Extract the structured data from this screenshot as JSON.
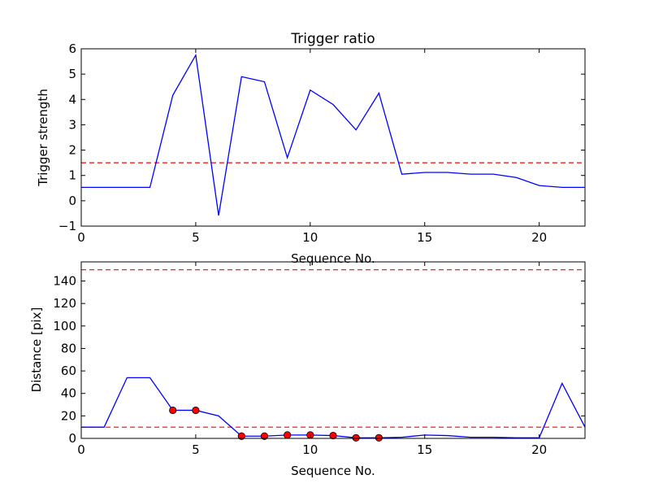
{
  "chart_data": [
    {
      "type": "line",
      "title": "Trigger ratio",
      "xlabel": "Sequence No.",
      "ylabel": "Trigger strength",
      "xlim": [
        0,
        22
      ],
      "ylim": [
        -1,
        6
      ],
      "xticks": [
        0,
        5,
        10,
        15,
        20
      ],
      "yticks": [
        -1,
        0,
        1,
        2,
        3,
        4,
        5,
        6
      ],
      "xtick_labels": [
        "0",
        "5",
        "10",
        "15",
        "20"
      ],
      "ytick_labels": [
        "−1",
        "0",
        "1",
        "2",
        "3",
        "4",
        "5",
        "6"
      ],
      "grid": false,
      "series": [
        {
          "color": "#0000ff",
          "style": "solid",
          "x": [
            0,
            1,
            2,
            3,
            4,
            5,
            6,
            7,
            8,
            9,
            10,
            11,
            12,
            13,
            14,
            15,
            16,
            17,
            18,
            19,
            20,
            21,
            22
          ],
          "y": [
            0.53,
            0.53,
            0.53,
            0.53,
            4.17,
            5.75,
            -0.58,
            4.9,
            4.7,
            1.7,
            4.37,
            3.8,
            2.8,
            4.25,
            1.05,
            1.12,
            1.12,
            1.05,
            1.05,
            0.92,
            0.6,
            0.53,
            0.53
          ]
        }
      ],
      "hlines": [
        {
          "y": 1.5,
          "color": "#ff0000",
          "style": "dashed"
        }
      ]
    },
    {
      "type": "line",
      "title": "",
      "xlabel": "Sequence No.",
      "ylabel": "Distance [pix]",
      "xlim": [
        0,
        22
      ],
      "ylim": [
        0,
        157
      ],
      "xticks": [
        0,
        5,
        10,
        15,
        20
      ],
      "yticks": [
        0,
        20,
        40,
        60,
        80,
        100,
        120,
        140
      ],
      "xtick_labels": [
        "0",
        "5",
        "10",
        "15",
        "20"
      ],
      "ytick_labels": [
        "0",
        "20",
        "40",
        "60",
        "80",
        "100",
        "120",
        "140"
      ],
      "grid": false,
      "series": [
        {
          "color": "#0000ff",
          "style": "solid",
          "x": [
            0,
            1,
            2,
            3,
            4,
            5,
            6,
            7,
            8,
            9,
            10,
            11,
            12,
            13,
            14,
            15,
            16,
            17,
            18,
            19,
            20,
            21,
            22
          ],
          "y": [
            10,
            10,
            54,
            54,
            25,
            25,
            20,
            2,
            2,
            3,
            3,
            2.5,
            0.5,
            0.5,
            1,
            3,
            2.5,
            1,
            1,
            0.5,
            0.5,
            49,
            10
          ]
        }
      ],
      "markers": {
        "color": "#ff0000",
        "x": [
          4,
          5,
          7,
          8,
          9,
          10,
          11,
          12,
          13
        ],
        "y": [
          25,
          25,
          2,
          2,
          3,
          3,
          2.5,
          0.5,
          0.5
        ]
      },
      "hlines": [
        {
          "y": 150,
          "color": "#ff0000",
          "style": "dashed"
        },
        {
          "y": 10,
          "color": "#ff0000",
          "style": "dashed"
        }
      ]
    }
  ]
}
